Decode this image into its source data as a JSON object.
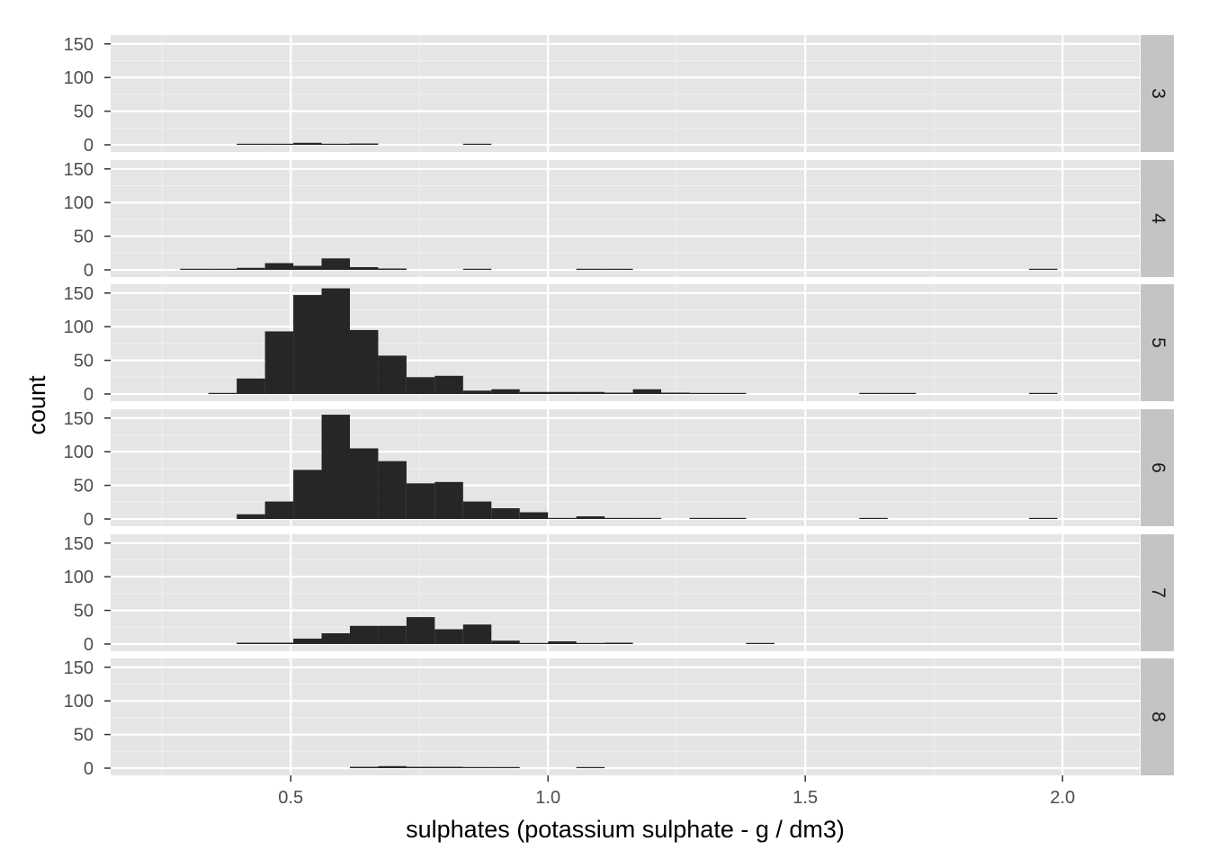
{
  "chart_data": {
    "type": "bar",
    "subtype": "faceted-histogram",
    "title": "",
    "xlabel": "sulphates (potassium sulphate - g / dm3)",
    "ylabel": "count",
    "xlim": [
      0.15,
      2.15
    ],
    "ylim": [
      0,
      165
    ],
    "x_ticks": [
      0.5,
      1.0,
      1.5,
      2.0
    ],
    "x_tick_labels": [
      "0.5",
      "1.0",
      "1.5",
      "2.0"
    ],
    "y_ticks": [
      0,
      50,
      100,
      150
    ],
    "y_tick_labels": [
      "0",
      "50",
      "100",
      "150"
    ],
    "bin_width": 0.055,
    "bin_starts": [
      0.285,
      0.34,
      0.395,
      0.45,
      0.505,
      0.56,
      0.615,
      0.67,
      0.725,
      0.78,
      0.835,
      0.89,
      0.945,
      1.0,
      1.055,
      1.11,
      1.165,
      1.22,
      1.275,
      1.33,
      1.385,
      1.44,
      1.495,
      1.55,
      1.605,
      1.66,
      1.715,
      1.77,
      1.825,
      1.88,
      1.935,
      1.99
    ],
    "facet_direction": "rows",
    "grid": true,
    "legend": "none",
    "colors": {
      "bar": "#262626",
      "panel": "#e5e5e5",
      "grid_major": "#ffffff",
      "grid_minor": "#f0f0f0",
      "strip": "#c4c4c4",
      "tick_label": "#4d4d4d"
    },
    "facets": [
      {
        "label": "3",
        "counts": [
          0,
          0,
          1,
          1,
          3,
          1,
          2,
          0,
          0,
          0,
          1,
          0,
          0,
          0,
          0,
          0,
          0,
          0,
          0,
          0,
          0,
          0,
          0,
          0,
          0,
          0,
          0,
          0,
          0,
          0,
          0,
          0
        ]
      },
      {
        "label": "4",
        "counts": [
          1,
          1,
          3,
          10,
          6,
          17,
          4,
          2,
          0,
          0,
          1,
          0,
          0,
          0,
          1,
          1,
          0,
          0,
          0,
          0,
          0,
          0,
          0,
          0,
          0,
          0,
          0,
          0,
          0,
          0,
          1,
          0
        ]
      },
      {
        "label": "5",
        "counts": [
          0,
          1,
          23,
          93,
          147,
          157,
          95,
          57,
          25,
          27,
          5,
          7,
          3,
          3,
          3,
          2,
          7,
          2,
          1,
          1,
          0,
          0,
          0,
          0,
          1,
          1,
          0,
          0,
          0,
          0,
          1,
          0
        ]
      },
      {
        "label": "6",
        "counts": [
          0,
          0,
          7,
          26,
          73,
          155,
          105,
          86,
          53,
          55,
          26,
          16,
          10,
          1,
          4,
          1,
          1,
          0,
          1,
          1,
          0,
          0,
          0,
          0,
          1,
          0,
          0,
          0,
          0,
          0,
          1,
          0
        ]
      },
      {
        "label": "7",
        "counts": [
          0,
          0,
          2,
          2,
          8,
          16,
          27,
          27,
          40,
          22,
          29,
          5,
          1,
          4,
          1,
          2,
          0,
          0,
          0,
          0,
          1,
          0,
          0,
          0,
          0,
          0,
          0,
          0,
          0,
          0,
          0,
          0
        ]
      },
      {
        "label": "8",
        "counts": [
          0,
          0,
          0,
          0,
          0,
          0,
          2,
          3,
          2,
          2,
          1,
          1,
          0,
          0,
          1,
          0,
          0,
          0,
          0,
          0,
          0,
          0,
          0,
          0,
          0,
          0,
          0,
          0,
          0,
          0,
          0,
          0
        ]
      }
    ]
  }
}
